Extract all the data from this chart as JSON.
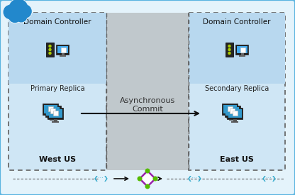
{
  "fig_width": 4.16,
  "fig_height": 2.75,
  "dpi": 100,
  "bg_outer": "#cce8f6",
  "bg_inner": "#e4f3fb",
  "left_top_bg": "#b8d8ef",
  "left_bot_bg": "#cfe6f5",
  "right_top_bg": "#b8d8ef",
  "right_bot_bg": "#cfe6f5",
  "center_bg": "#c0c8cc",
  "dashed_color": "#606060",
  "outer_border_color": "#5ab4e0",
  "title_left": "Domain Controller",
  "title_right": "Domain Controller",
  "label_primary": "Primary Replica",
  "label_secondary": "Secondary Replica",
  "label_west": "West US",
  "label_east": "East US",
  "label_async": "Asynchronous\nCommit",
  "arrow_color": "#111111",
  "cloud_color": "#2288cc",
  "purple_color": "#9922aa",
  "green_color": "#55bb00",
  "cyan_color": "#33aacc",
  "tower_color": "#2a2a2a",
  "screen_color": "#44aaee",
  "white": "#ffffff"
}
